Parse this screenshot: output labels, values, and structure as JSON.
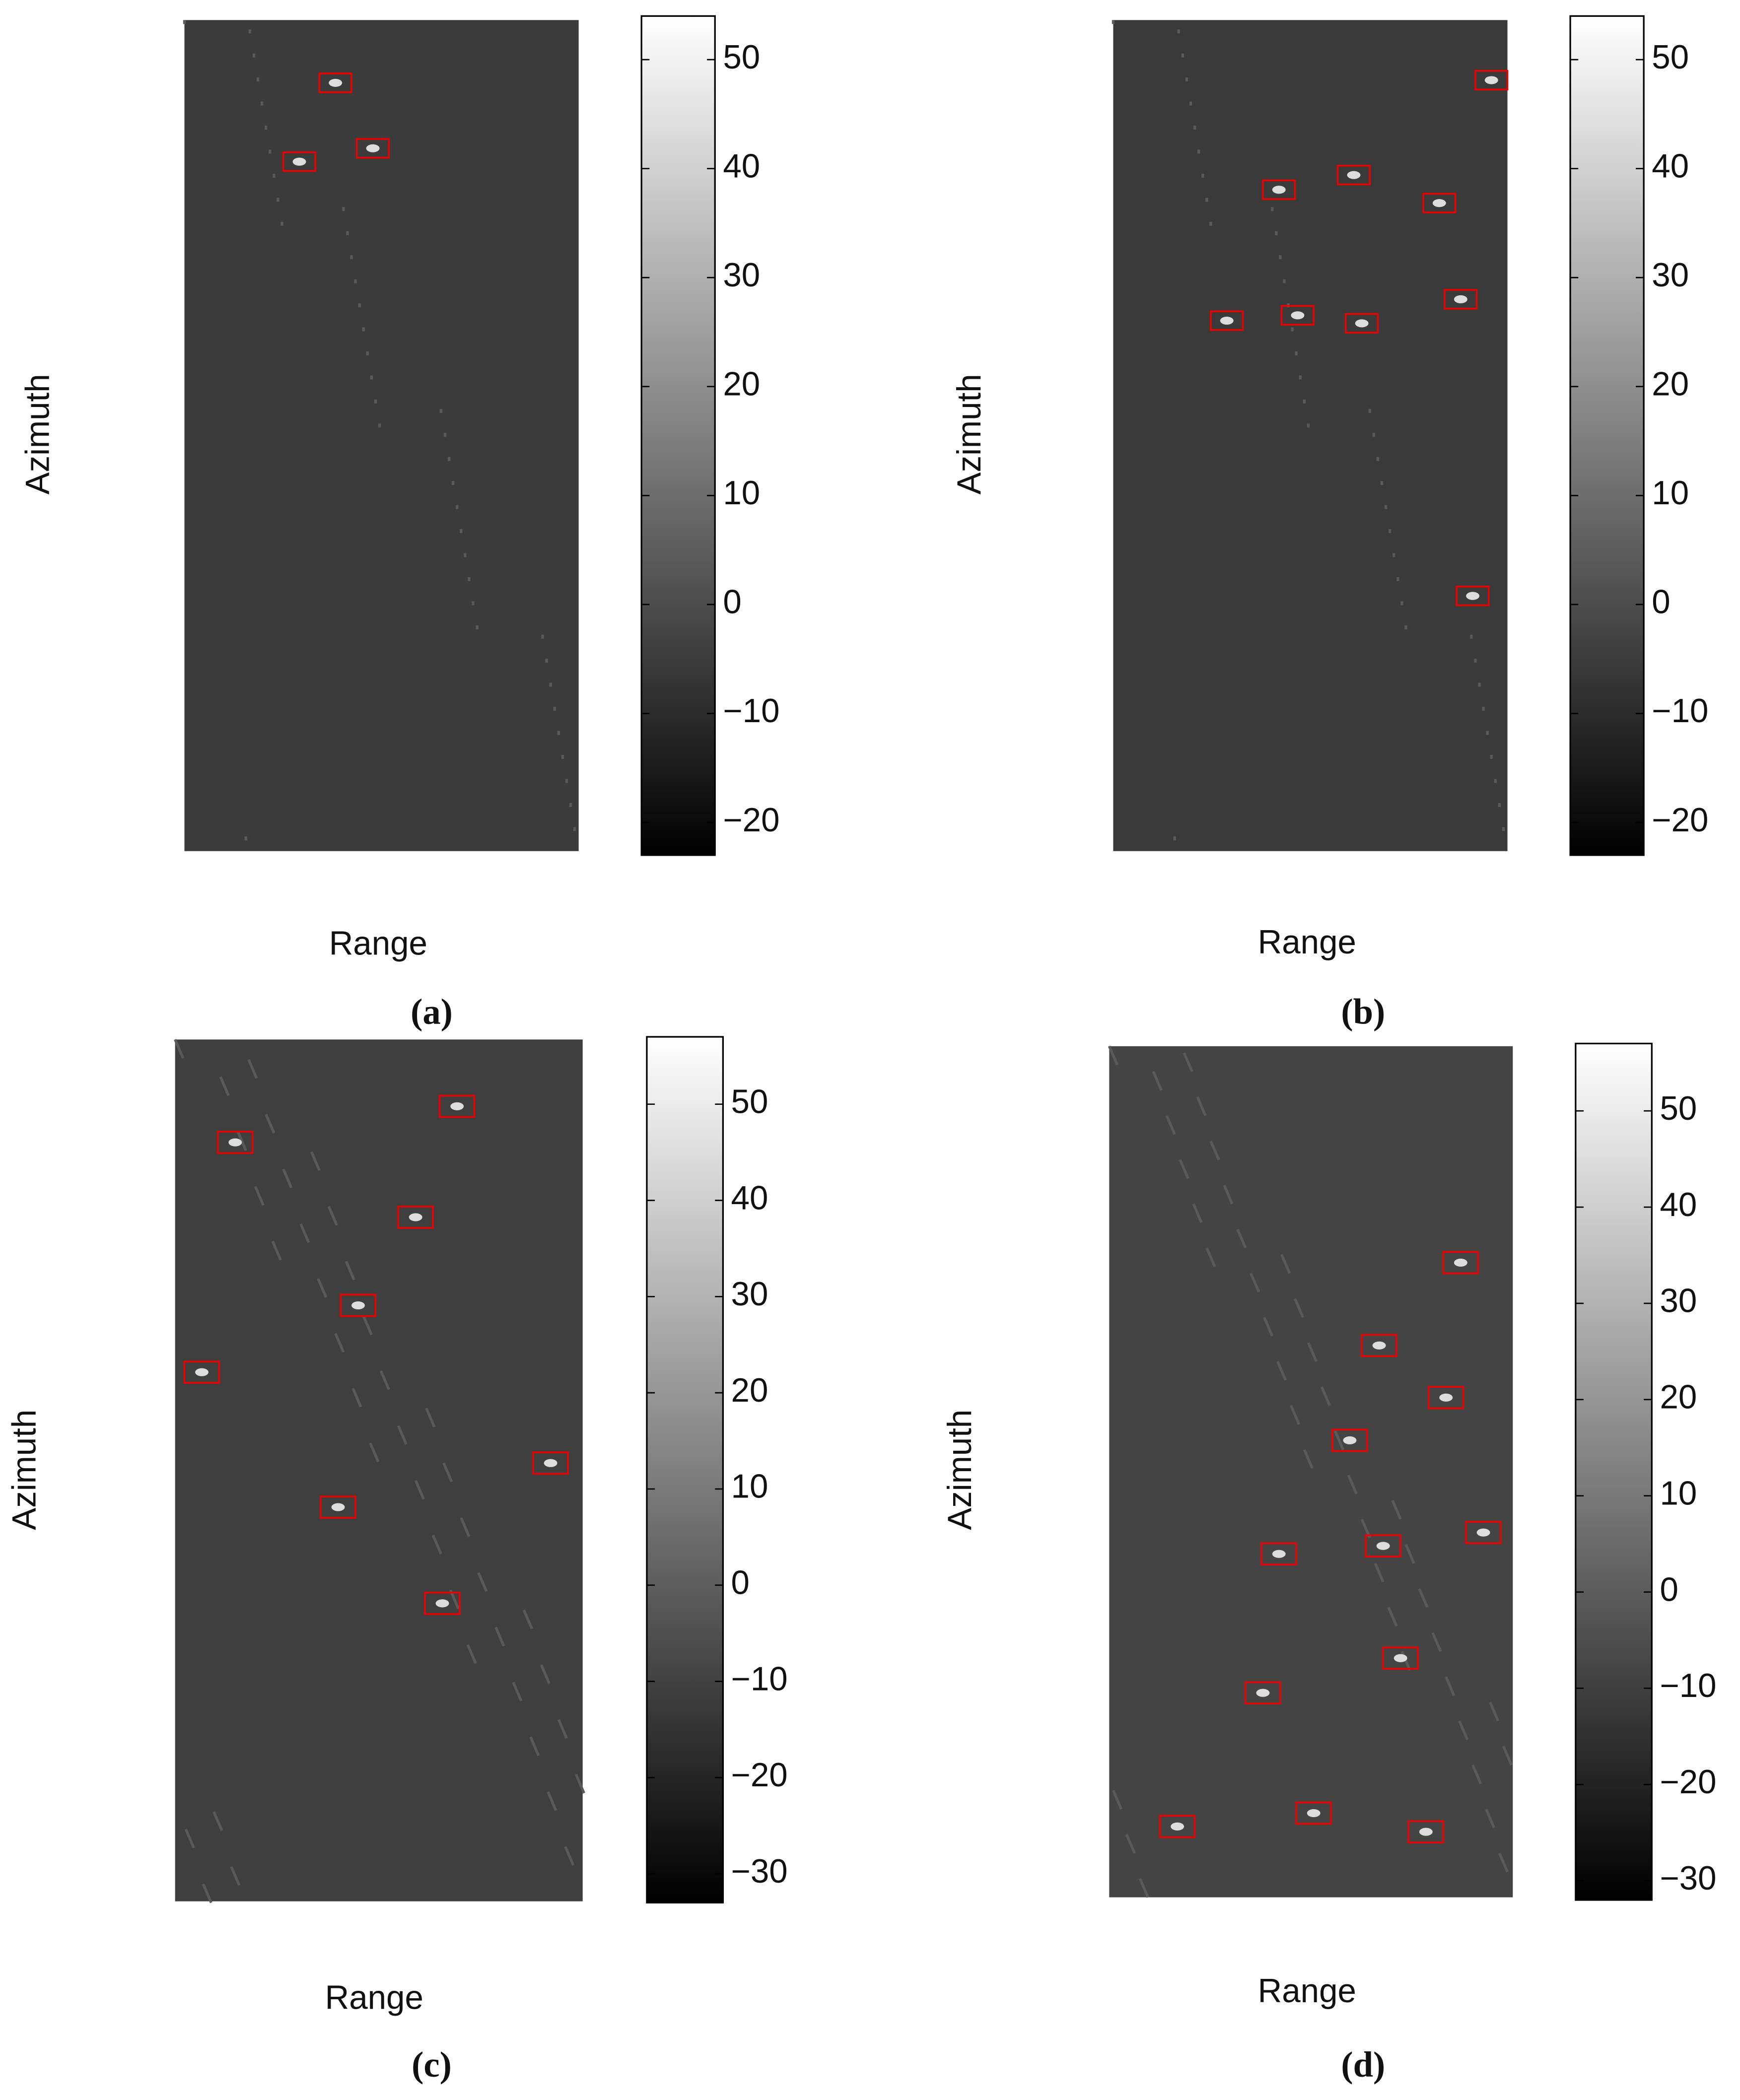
{
  "chart_data": [
    {
      "type": "image",
      "xlabel": "Range",
      "ylabel": "Azimuth",
      "caption": "(a)",
      "clim": [
        -23,
        54
      ],
      "cticks": [
        50,
        40,
        30,
        20,
        10,
        0,
        {
          "value": -10,
          "label": "−10"
        },
        {
          "value": -20,
          "label": "−20"
        }
      ]
    },
    {
      "type": "image",
      "xlabel": "Range",
      "ylabel": "Azimuth",
      "caption": "(b)",
      "clim": [
        -23,
        54
      ],
      "cticks": [
        50,
        40,
        30,
        20,
        10,
        0,
        {
          "value": -10,
          "label": "−10"
        },
        {
          "value": -20,
          "label": "−20"
        }
      ]
    },
    {
      "type": "image",
      "xlabel": "Range",
      "ylabel": "Azimuth",
      "caption": "(c)",
      "clim": [
        -33,
        57
      ],
      "cticks": [
        50,
        40,
        30,
        20,
        10,
        0,
        {
          "value": -10,
          "label": "−10"
        },
        {
          "value": -20,
          "label": "−20"
        },
        {
          "value": -30,
          "label": "−30"
        }
      ]
    },
    {
      "type": "image",
      "xlabel": "Range",
      "ylabel": "Azimuth",
      "caption": "(d)",
      "clim": [
        -32,
        57
      ],
      "cticks": [
        50,
        40,
        30,
        20,
        10,
        0,
        {
          "value": -10,
          "label": "−10"
        },
        {
          "value": -20,
          "label": "−20"
        },
        {
          "value": -30,
          "label": "−30"
        }
      ]
    }
  ]
}
